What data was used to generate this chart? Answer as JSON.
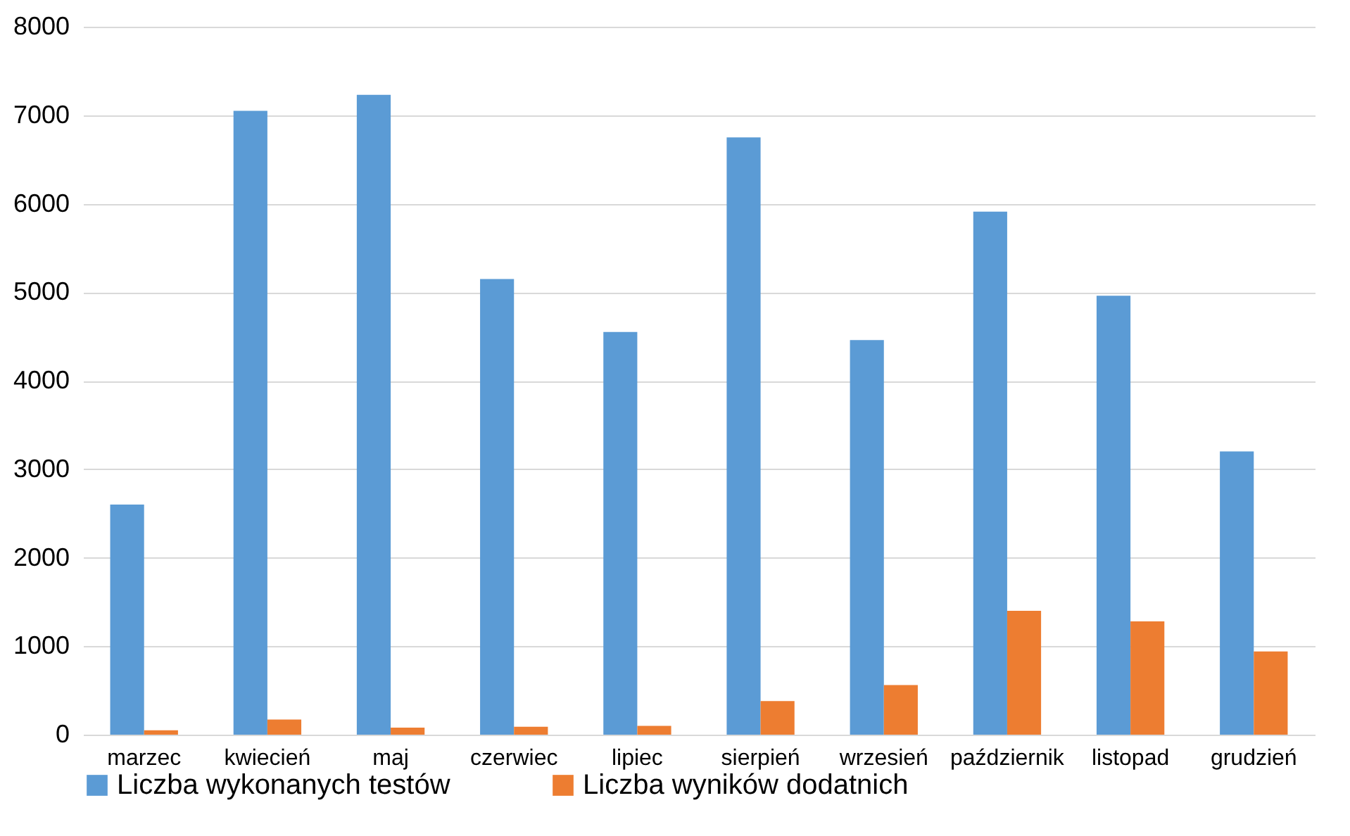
{
  "chart_data": {
    "type": "bar",
    "categories": [
      "marzec",
      "kwiecień",
      "maj",
      "czerwiec",
      "lipiec",
      "sierpień",
      "wrzesień",
      "październik",
      "listopad",
      "grudzień"
    ],
    "series": [
      {
        "name": "Liczba wykonanych testów",
        "color": "#5b9bd5",
        "values": [
          2600,
          7050,
          7230,
          5150,
          4550,
          6750,
          4460,
          5910,
          4960,
          3200
        ]
      },
      {
        "name": "Liczba wyników dodatnich",
        "color": "#ed7d31",
        "values": [
          50,
          170,
          80,
          90,
          100,
          380,
          560,
          1400,
          1280,
          940
        ]
      }
    ],
    "ylim": [
      0,
      8000
    ],
    "yticks": [
      0,
      1000,
      2000,
      3000,
      4000,
      5000,
      6000,
      7000,
      8000
    ],
    "grid": "y",
    "legend": "bottom"
  }
}
